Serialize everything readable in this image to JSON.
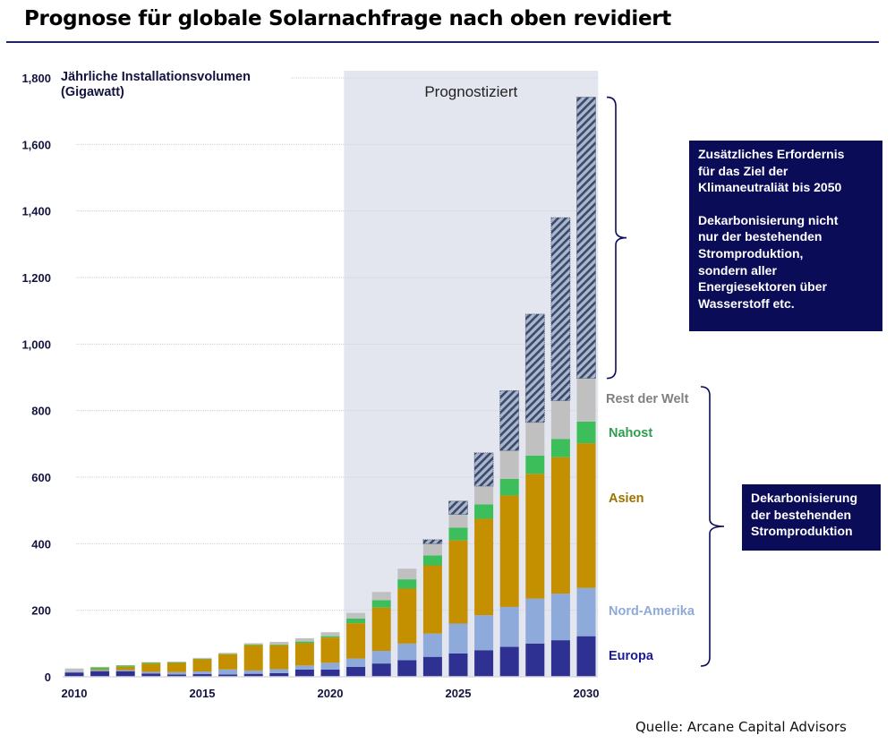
{
  "title": "Prognose für globale Solarnachfrage nach oben revidiert",
  "source": "Quelle: Arcane Capital Advisors",
  "callouts": {
    "top": {
      "line1": "Zusätzliches Erfordernis\nfür das Ziel der\nKlimaneutraliät bis 2050",
      "line2": "Dekarbonisierung nicht\nnur der bestehenden\nStromproduktion,\nsondern aller\nEnergiesektoren über\nWasserstoff etc."
    },
    "bottom": "Dekarbonisierung\nder bestehenden\nStromproduktion"
  },
  "colors": {
    "europa": "#2e3192",
    "nord_amerika": "#8eaadb",
    "asien": "#c49000",
    "nahost": "#3cbf5a",
    "rest": "#c0c0c0",
    "zusaetzlich_fill": "#a9b6cc",
    "zusaetzlich_stripe": "#3b4a6b",
    "forecast_band": "#e4e6ef",
    "axis_text": "#12133f",
    "bracket": "#0b0c58"
  },
  "chart_data": {
    "type": "bar",
    "stacked": true,
    "title": "Prognose für globale Solarnachfrage nach oben revidiert",
    "ylabel": "Jährliche Installationsvolumen\n(Gigawatt)",
    "xlabel": "",
    "ylim": [
      0,
      1800
    ],
    "yticks": [
      0,
      200,
      400,
      600,
      800,
      1000,
      1200,
      1400,
      1600,
      1800
    ],
    "ytick_labels": [
      "0",
      "200",
      "400",
      "600",
      "800",
      "1,000",
      "1,200",
      "1,400",
      "1,600",
      "1,800"
    ],
    "x": [
      2010,
      2011,
      2012,
      2013,
      2014,
      2015,
      2016,
      2017,
      2018,
      2019,
      2020,
      2021,
      2022,
      2023,
      2024,
      2025,
      2026,
      2027,
      2028,
      2029,
      2030
    ],
    "xtick_labels": [
      "2010",
      "2015",
      "2020",
      "2025",
      "2030"
    ],
    "xtick_values": [
      2010,
      2015,
      2020,
      2025,
      2030
    ],
    "grid": true,
    "forecast_region": {
      "label": "Prognostiziert",
      "start": 2021,
      "end": 2030
    },
    "series": [
      {
        "name": "Europa",
        "key": "europa",
        "values": [
          13,
          17,
          17,
          10,
          7,
          8,
          7,
          9,
          11,
          22,
          22,
          30,
          40,
          50,
          60,
          70,
          80,
          90,
          100,
          110,
          122
        ]
      },
      {
        "name": "Nord-Amerika",
        "key": "nord_amerika",
        "values": [
          2,
          3,
          3,
          5,
          7,
          8,
          15,
          10,
          12,
          12,
          20,
          25,
          38,
          50,
          70,
          90,
          105,
          120,
          135,
          140,
          145
        ]
      },
      {
        "name": "Asien",
        "key": "asien",
        "values": [
          0,
          3,
          10,
          25,
          28,
          37,
          46,
          76,
          72,
          67,
          76,
          106,
          130,
          165,
          205,
          250,
          290,
          335,
          375,
          410,
          435
        ]
      },
      {
        "name": "Nahost",
        "key": "nahost",
        "values": [
          0,
          5,
          4,
          3,
          1,
          1,
          1,
          2,
          2,
          5,
          4,
          14,
          22,
          28,
          30,
          38,
          43,
          50,
          55,
          55,
          65
        ]
      },
      {
        "name": "Rest der Welt",
        "key": "rest",
        "values": [
          10,
          2,
          1,
          1,
          3,
          3,
          3,
          4,
          8,
          10,
          12,
          17,
          25,
          32,
          35,
          40,
          55,
          85,
          100,
          115,
          130
        ]
      },
      {
        "name": "Zusätzliches Erfordernis",
        "key": "zusaetzlich",
        "values": [
          0,
          0,
          0,
          0,
          0,
          0,
          0,
          0,
          0,
          0,
          0,
          0,
          0,
          0,
          12,
          40,
          100,
          180,
          325,
          550,
          845
        ]
      }
    ],
    "legend": {
      "placement": "right",
      "entries": [
        {
          "name": "Rest der Welt",
          "color": "#808080"
        },
        {
          "name": "Nahost",
          "color": "#2e9e4e"
        },
        {
          "name": "Asien",
          "color": "#9c7300"
        },
        {
          "name": "Nord-Amerika",
          "color": "#8eaadb"
        },
        {
          "name": "Europa",
          "color": "#1a1a9a"
        }
      ]
    }
  }
}
